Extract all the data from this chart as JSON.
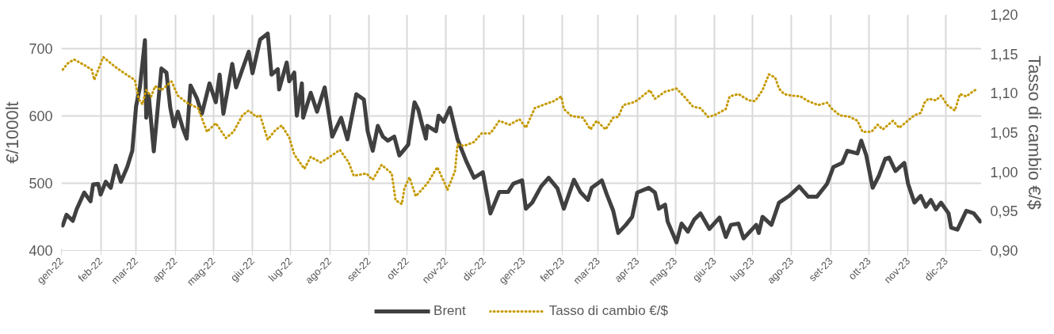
{
  "chart_data": {
    "type": "line",
    "ylabel": "€/1000lt",
    "y2label": "Tasso di cambio €/$",
    "xlim": [
      "2022-01-01",
      "2023-12-29"
    ],
    "xticks": [
      {
        "value": "2022-01-01",
        "label": "gen-22"
      },
      {
        "value": "2022-02-01",
        "label": "feb-22"
      },
      {
        "value": "2022-03-01",
        "label": "mar-22"
      },
      {
        "value": "2022-04-01",
        "label": "apr-22"
      },
      {
        "value": "2022-05-01",
        "label": "mag-22"
      },
      {
        "value": "2022-06-01",
        "label": "giu-22"
      },
      {
        "value": "2022-07-01",
        "label": "lug-22"
      },
      {
        "value": "2022-08-01",
        "label": "ago-22"
      },
      {
        "value": "2022-09-01",
        "label": "set-22"
      },
      {
        "value": "2022-10-01",
        "label": "ott-22"
      },
      {
        "value": "2022-11-01",
        "label": "nov-22"
      },
      {
        "value": "2022-12-01",
        "label": "dic-22"
      },
      {
        "value": "2023-01-01",
        "label": "gen-23"
      },
      {
        "value": "2023-02-01",
        "label": "feb-23"
      },
      {
        "value": "2023-03-01",
        "label": "mar-23"
      },
      {
        "value": "2023-04-01",
        "label": "apr-23"
      },
      {
        "value": "2023-05-01",
        "label": "mag-23"
      },
      {
        "value": "2023-06-01",
        "label": "giu-23"
      },
      {
        "value": "2023-07-01",
        "label": "lug-23"
      },
      {
        "value": "2023-08-01",
        "label": "ago-23"
      },
      {
        "value": "2023-09-01",
        "label": "set-23"
      },
      {
        "value": "2023-10-01",
        "label": "ott-23"
      },
      {
        "value": "2023-11-01",
        "label": "nov-23"
      },
      {
        "value": "2023-12-01",
        "label": "dic-23"
      }
    ],
    "ylim": [
      400,
      750
    ],
    "yticks": [
      400,
      500,
      600,
      700
    ],
    "y2lim": [
      0.9,
      1.2
    ],
    "y2ticks": [
      {
        "value": 0.9,
        "label": "0,90"
      },
      {
        "value": 0.95,
        "label": "0,95"
      },
      {
        "value": 1.0,
        "label": "1,00"
      },
      {
        "value": 1.05,
        "label": "1,05"
      },
      {
        "value": 1.1,
        "label": "1,10"
      },
      {
        "value": 1.15,
        "label": "1,15"
      },
      {
        "value": 1.2,
        "label": "1,20"
      }
    ],
    "grid": true,
    "legend": "bottom",
    "series": [
      {
        "name": "Brent",
        "color": "#404040",
        "line_style": "solid",
        "x": [
          "2022-01-02",
          "2022-01-05",
          "2022-01-10",
          "2022-01-13",
          "2022-01-19",
          "2022-01-24",
          "2022-01-26",
          "2022-01-30",
          "2022-02-01",
          "2022-02-05",
          "2022-02-09",
          "2022-02-13",
          "2022-02-17",
          "2022-02-22",
          "2022-02-26",
          "2022-03-01",
          "2022-03-04",
          "2022-03-08",
          "2022-03-09",
          "2022-03-11",
          "2022-03-15",
          "2022-03-18",
          "2022-03-21",
          "2022-03-25",
          "2022-03-28",
          "2022-03-31",
          "2022-04-03",
          "2022-04-07",
          "2022-04-10",
          "2022-04-13",
          "2022-04-18",
          "2022-04-22",
          "2022-04-28",
          "2022-05-03",
          "2022-05-06",
          "2022-05-09",
          "2022-05-16",
          "2022-05-19",
          "2022-05-24",
          "2022-05-29",
          "2022-06-01",
          "2022-06-04",
          "2022-06-07",
          "2022-06-13",
          "2022-06-16",
          "2022-06-21",
          "2022-06-22",
          "2022-06-28",
          "2022-06-30",
          "2022-07-04",
          "2022-07-06",
          "2022-07-10",
          "2022-07-11",
          "2022-07-17",
          "2022-07-22",
          "2022-07-28",
          "2022-08-03",
          "2022-08-10",
          "2022-08-15",
          "2022-08-22",
          "2022-08-28",
          "2022-08-31",
          "2022-09-04",
          "2022-09-08",
          "2022-09-12",
          "2022-09-16",
          "2022-09-21",
          "2022-09-25",
          "2022-10-02",
          "2022-10-07",
          "2022-10-10",
          "2022-10-13",
          "2022-10-16",
          "2022-10-17",
          "2022-10-24",
          "2022-10-26",
          "2022-10-30",
          "2022-11-04",
          "2022-11-10",
          "2022-11-17",
          "2022-11-23",
          "2022-11-30",
          "2022-12-06",
          "2022-12-13",
          "2022-12-20",
          "2022-12-24",
          "2022-12-31",
          "2023-01-03",
          "2023-01-08",
          "2023-01-15",
          "2023-01-21",
          "2023-01-28",
          "2023-02-02",
          "2023-02-10",
          "2023-02-15",
          "2023-02-21",
          "2023-02-24",
          "2023-03-04",
          "2023-03-08",
          "2023-03-13",
          "2023-03-17",
          "2023-03-23",
          "2023-03-28",
          "2023-04-01",
          "2023-04-10",
          "2023-04-15",
          "2023-04-18",
          "2023-04-23",
          "2023-04-25",
          "2023-05-02",
          "2023-05-06",
          "2023-05-11",
          "2023-05-16",
          "2023-05-21",
          "2023-05-28",
          "2023-06-05",
          "2023-06-10",
          "2023-06-14",
          "2023-06-20",
          "2023-06-24",
          "2023-07-04",
          "2023-07-06",
          "2023-07-09",
          "2023-07-16",
          "2023-07-22",
          "2023-07-30",
          "2023-08-07",
          "2023-08-14",
          "2023-08-21",
          "2023-08-29",
          "2023-09-03",
          "2023-09-10",
          "2023-09-14",
          "2023-09-22",
          "2023-09-25",
          "2023-09-29",
          "2023-10-04",
          "2023-10-09",
          "2023-10-14",
          "2023-10-17",
          "2023-10-22",
          "2023-10-29",
          "2023-11-01",
          "2023-11-06",
          "2023-11-11",
          "2023-11-15",
          "2023-11-19",
          "2023-11-23",
          "2023-11-27",
          "2023-12-03",
          "2023-12-05",
          "2023-12-10",
          "2023-12-17",
          "2023-12-23",
          "2023-12-28"
        ],
        "values": [
          437,
          453,
          444,
          461,
          486,
          473,
          498,
          499,
          483,
          502,
          493,
          526,
          502,
          524,
          548,
          614,
          642,
          712,
          597,
          630,
          547,
          609,
          670,
          664,
          612,
          584,
          606,
          581,
          566,
          645,
          626,
          603,
          648,
          620,
          661,
          603,
          677,
          642,
          669,
          695,
          663,
          688,
          713,
          722,
          661,
          669,
          639,
          679,
          651,
          664,
          600,
          648,
          597,
          634,
          606,
          642,
          569,
          597,
          565,
          632,
          624,
          577,
          548,
          585,
          569,
          563,
          569,
          541,
          557,
          620,
          609,
          587,
          566,
          585,
          577,
          600,
          591,
          612,
          565,
          532,
          508,
          516,
          455,
          487,
          487,
          499,
          504,
          462,
          471,
          495,
          508,
          492,
          462,
          505,
          487,
          475,
          493,
          504,
          483,
          459,
          426,
          438,
          450,
          486,
          493,
          486,
          462,
          468,
          443,
          412,
          440,
          428,
          446,
          455,
          432,
          449,
          420,
          438,
          440,
          418,
          438,
          426,
          450,
          438,
          471,
          481,
          495,
          480,
          480,
          499,
          524,
          530,
          548,
          544,
          563,
          541,
          493,
          511,
          536,
          538,
          518,
          530,
          499,
          471,
          481,
          465,
          475,
          461,
          471,
          455,
          434,
          431,
          459,
          455,
          443
        ]
      },
      {
        "name": "Tasso di cambio €/$",
        "color": "#c59a00",
        "line_style": "dotted",
        "axis": "y2",
        "x": [
          "2022-01-02",
          "2022-01-06",
          "2022-01-11",
          "2022-01-19",
          "2022-01-25",
          "2022-01-27",
          "2022-02-03",
          "2022-02-13",
          "2022-02-22",
          "2022-02-28",
          "2022-03-03",
          "2022-03-06",
          "2022-03-09",
          "2022-03-13",
          "2022-03-16",
          "2022-03-21",
          "2022-03-29",
          "2022-04-03",
          "2022-04-10",
          "2022-04-19",
          "2022-04-26",
          "2022-05-03",
          "2022-05-11",
          "2022-05-17",
          "2022-05-24",
          "2022-05-29",
          "2022-06-04",
          "2022-06-07",
          "2022-06-13",
          "2022-06-19",
          "2022-06-24",
          "2022-06-30",
          "2022-07-04",
          "2022-07-12",
          "2022-07-17",
          "2022-07-25",
          "2022-08-01",
          "2022-08-09",
          "2022-08-16",
          "2022-08-20",
          "2022-08-30",
          "2022-09-04",
          "2022-09-11",
          "2022-09-19",
          "2022-09-22",
          "2022-09-27",
          "2022-09-29",
          "2022-10-03",
          "2022-10-08",
          "2022-10-17",
          "2022-10-25",
          "2022-10-31",
          "2022-11-02",
          "2022-11-08",
          "2022-11-10",
          "2022-11-15",
          "2022-11-23",
          "2022-11-29",
          "2022-12-06",
          "2022-12-13",
          "2022-12-21",
          "2022-12-29",
          "2023-01-03",
          "2023-01-10",
          "2023-01-18",
          "2023-01-25",
          "2023-01-31",
          "2023-02-02",
          "2023-02-08",
          "2023-02-17",
          "2023-02-23",
          "2023-02-28",
          "2023-03-07",
          "2023-03-13",
          "2023-03-17",
          "2023-03-21",
          "2023-03-28",
          "2023-04-01",
          "2023-04-11",
          "2023-04-15",
          "2023-04-23",
          "2023-05-02",
          "2023-05-08",
          "2023-05-15",
          "2023-05-21",
          "2023-05-27",
          "2023-06-01",
          "2023-06-10",
          "2023-06-13",
          "2023-06-20",
          "2023-06-28",
          "2023-07-03",
          "2023-07-09",
          "2023-07-14",
          "2023-07-19",
          "2023-07-22",
          "2023-07-26",
          "2023-08-01",
          "2023-08-08",
          "2023-08-14",
          "2023-08-22",
          "2023-08-29",
          "2023-09-02",
          "2023-09-08",
          "2023-09-16",
          "2023-09-22",
          "2023-09-26",
          "2023-10-03",
          "2023-10-08",
          "2023-10-12",
          "2023-10-20",
          "2023-10-25",
          "2023-10-31",
          "2023-11-06",
          "2023-11-11",
          "2023-11-14",
          "2023-11-17",
          "2023-11-23",
          "2023-11-27",
          "2023-12-02",
          "2023-12-08",
          "2023-12-12",
          "2023-12-17",
          "2023-12-22",
          "2023-12-26"
        ],
        "values": [
          1.13,
          1.138,
          1.143,
          1.136,
          1.13,
          1.117,
          1.146,
          1.133,
          1.123,
          1.117,
          1.093,
          1.086,
          1.104,
          1.096,
          1.109,
          1.104,
          1.115,
          1.097,
          1.088,
          1.081,
          1.051,
          1.062,
          1.043,
          1.051,
          1.072,
          1.078,
          1.07,
          1.072,
          1.041,
          1.053,
          1.059,
          1.044,
          1.022,
          1.004,
          1.019,
          1.012,
          1.019,
          1.028,
          1.012,
          0.995,
          0.998,
          0.99,
          1.009,
          0.998,
          0.964,
          0.959,
          0.979,
          0.993,
          0.969,
          0.985,
          1.006,
          0.985,
          0.977,
          1.001,
          1.035,
          1.033,
          1.038,
          1.049,
          1.049,
          1.065,
          1.06,
          1.067,
          1.056,
          1.081,
          1.086,
          1.09,
          1.096,
          1.08,
          1.071,
          1.069,
          1.054,
          1.065,
          1.054,
          1.069,
          1.07,
          1.085,
          1.088,
          1.091,
          1.104,
          1.093,
          1.102,
          1.106,
          1.096,
          1.083,
          1.081,
          1.07,
          1.072,
          1.08,
          1.096,
          1.099,
          1.091,
          1.09,
          1.104,
          1.124,
          1.12,
          1.106,
          1.099,
          1.097,
          1.096,
          1.09,
          1.085,
          1.088,
          1.08,
          1.072,
          1.07,
          1.065,
          1.051,
          1.051,
          1.06,
          1.054,
          1.065,
          1.056,
          1.064,
          1.072,
          1.075,
          1.088,
          1.093,
          1.091,
          1.097,
          1.085,
          1.078,
          1.099,
          1.096,
          1.102,
          1.106
        ]
      }
    ]
  }
}
